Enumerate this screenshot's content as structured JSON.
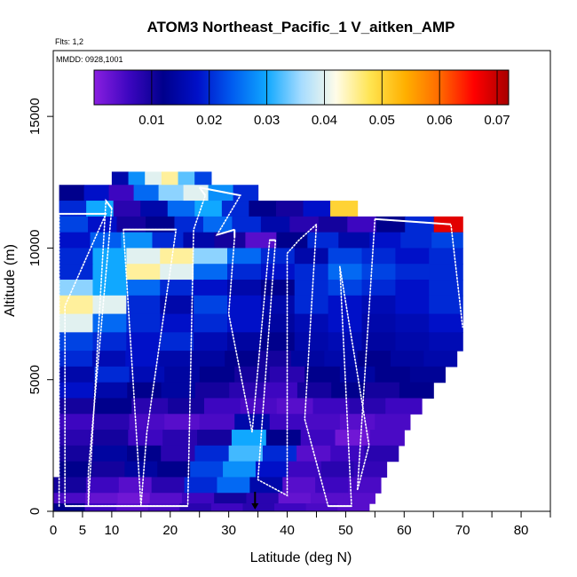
{
  "chart_data": {
    "type": "heatmap",
    "title": "ATOM3 Northeast_Pacific_1 V_aitken_AMP",
    "annotations": {
      "flights": "Flts: 1,2",
      "dates": "MMDD: 0928,1001"
    },
    "xlabel": "Latitude (deg N)",
    "ylabel": "Altitude (m)",
    "xlim": [
      0,
      85
    ],
    "ylim": [
      0,
      17500
    ],
    "x_ticks": [
      0,
      5,
      10,
      20,
      30,
      40,
      50,
      60,
      70,
      80
    ],
    "x_minor_ticks": [
      15,
      25,
      35,
      45,
      55,
      65,
      75,
      85
    ],
    "y_ticks": [
      0,
      5000,
      10000,
      15000
    ],
    "colorbar": {
      "min": 0.0,
      "max": 0.072,
      "ticks": [
        0.01,
        0.02,
        0.03,
        0.04,
        0.05,
        0.06,
        0.07
      ],
      "colors": [
        "#8a1fe0",
        "#3d06c0",
        "#00008c",
        "#0010c8",
        "#005cf0",
        "#10a8ff",
        "#a6dcff",
        "#fffce8",
        "#ffe450",
        "#ffb000",
        "#ff6a00",
        "#ff0000",
        "#a80000"
      ]
    },
    "grid": false,
    "data_extent": {
      "lat_min": 0,
      "lat_max": 71,
      "alt_min": 0,
      "alt_max": 12800
    },
    "rows": [
      {
        "alt": [
          12400,
          12900
        ],
        "lat": [
          10,
          27
        ],
        "values": [
          0.015,
          0.028,
          0.04,
          0.045,
          0.033,
          0.022
        ]
      },
      {
        "alt": [
          11800,
          12400
        ],
        "lat": [
          1,
          35
        ],
        "values": [
          0.012,
          0.018,
          0.006,
          0.025,
          0.035,
          0.04,
          0.028,
          0.02
        ]
      },
      {
        "alt": [
          11200,
          11800
        ],
        "lat": [
          1,
          52
        ],
        "values": [
          0.02,
          0.03,
          0.008,
          0.015,
          0.025,
          0.03,
          0.02,
          0.012,
          0.01,
          0.018,
          0.05
        ]
      },
      {
        "alt": [
          10600,
          11200
        ],
        "lat": [
          1,
          70
        ],
        "values": [
          0.022,
          0.018,
          0.01,
          0.012,
          0.02,
          0.025,
          0.02,
          0.015,
          0.008,
          0.01,
          0.006,
          0.012,
          0.02,
          0.068
        ]
      },
      {
        "alt": [
          10000,
          10600
        ],
        "lat": [
          1,
          70
        ],
        "values": [
          0.018,
          0.024,
          0.028,
          0.02,
          0.015,
          0.01,
          0.004,
          0.012,
          0.02,
          0.015,
          0.018,
          0.02,
          0.022
        ]
      },
      {
        "alt": [
          9400,
          10000
        ],
        "lat": [
          1,
          70
        ],
        "values": [
          0.02,
          0.03,
          0.04,
          0.045,
          0.035,
          0.025,
          0.02,
          0.015,
          0.022,
          0.02,
          0.018,
          0.02
        ]
      },
      {
        "alt": [
          8800,
          9400
        ],
        "lat": [
          1,
          70
        ],
        "values": [
          0.02,
          0.03,
          0.045,
          0.04,
          0.025,
          0.02,
          0.018,
          0.02,
          0.025,
          0.022,
          0.02,
          0.02
        ]
      },
      {
        "alt": [
          8200,
          8800
        ],
        "lat": [
          1,
          70
        ],
        "values": [
          0.035,
          0.03,
          0.025,
          0.02,
          0.018,
          0.015,
          0.012,
          0.02,
          0.022,
          0.02,
          0.018,
          0.02
        ]
      },
      {
        "alt": [
          7500,
          8200
        ],
        "lat": [
          1,
          70
        ],
        "values": [
          0.045,
          0.04,
          0.02,
          0.015,
          0.022,
          0.018,
          0.015,
          0.02,
          0.018,
          0.016,
          0.018,
          0.02
        ]
      },
      {
        "alt": [
          6800,
          7500
        ],
        "lat": [
          1,
          70
        ],
        "values": [
          0.04,
          0.025,
          0.02,
          0.018,
          0.02,
          0.018,
          0.014,
          0.016,
          0.018,
          0.015,
          0.016,
          0.018
        ]
      },
      {
        "alt": [
          6100,
          6800
        ],
        "lat": [
          1,
          70
        ],
        "values": [
          0.022,
          0.02,
          0.018,
          0.02,
          0.016,
          0.014,
          0.012,
          0.015,
          0.016,
          0.014,
          0.015,
          0.016
        ]
      },
      {
        "alt": [
          5500,
          6100
        ],
        "lat": [
          1,
          69
        ],
        "values": [
          0.02,
          0.016,
          0.018,
          0.015,
          0.014,
          0.012,
          0.01,
          0.014,
          0.015,
          0.012,
          0.014,
          0.015
        ]
      },
      {
        "alt": [
          4900,
          5500
        ],
        "lat": [
          1,
          67
        ],
        "values": [
          0.015,
          0.02,
          0.016,
          0.014,
          0.012,
          0.01,
          0.008,
          0.012,
          0.014,
          0.012,
          0.013
        ]
      },
      {
        "alt": [
          4300,
          4900
        ],
        "lat": [
          1,
          65
        ],
        "values": [
          0.018,
          0.015,
          0.012,
          0.014,
          0.01,
          0.008,
          0.006,
          0.01,
          0.012,
          0.01,
          0.012
        ]
      },
      {
        "alt": [
          3700,
          4300
        ],
        "lat": [
          1,
          63
        ],
        "values": [
          0.01,
          0.012,
          0.008,
          0.01,
          0.006,
          0.005,
          0.004,
          0.006,
          0.008,
          0.006
        ]
      },
      {
        "alt": [
          3100,
          3700
        ],
        "lat": [
          1,
          61
        ],
        "values": [
          0.006,
          0.008,
          0.005,
          0.004,
          0.005,
          0.015,
          0.006,
          0.005,
          0.004,
          0.005
        ]
      },
      {
        "alt": [
          2500,
          3100
        ],
        "lat": [
          1,
          60
        ],
        "values": [
          0.008,
          0.01,
          0.006,
          0.008,
          0.01,
          0.03,
          0.012,
          0.006,
          0.002,
          0.005
        ]
      },
      {
        "alt": [
          1900,
          2500
        ],
        "lat": [
          1,
          59
        ],
        "values": [
          0.01,
          0.014,
          0.012,
          0.008,
          0.02,
          0.032,
          0.02,
          0.004,
          0.006,
          0.008
        ]
      },
      {
        "alt": [
          1300,
          1900
        ],
        "lat": [
          1,
          57
        ],
        "values": [
          0.012,
          0.01,
          0.014,
          0.012,
          0.022,
          0.028,
          0.018,
          0.006,
          0.008,
          0.007
        ]
      },
      {
        "alt": [
          700,
          1300
        ],
        "lat": [
          0,
          56
        ],
        "values": [
          0.01,
          0.006,
          0.004,
          0.008,
          0.02,
          0.025,
          0.015,
          0.004,
          0.006,
          0.005
        ]
      },
      {
        "alt": [
          300,
          700
        ],
        "lat": [
          0,
          55
        ],
        "values": [
          0.005,
          0.003,
          0.002,
          0.004,
          0.006,
          0.01,
          0.008,
          0.003,
          0.004,
          0.004
        ]
      },
      {
        "alt": [
          0,
          300
        ],
        "lat": [
          0,
          54
        ],
        "values": [
          0.012,
          0.006,
          0.004,
          0.005,
          0.008,
          0.006,
          0.008,
          0.006,
          0.005,
          0.004
        ]
      }
    ],
    "flight_track": [
      [
        1,
        200
      ],
      [
        1,
        11300
      ],
      [
        9,
        11300
      ],
      [
        2,
        7800
      ],
      [
        2,
        200
      ],
      [
        6,
        200
      ],
      [
        9,
        11800
      ],
      [
        10,
        11500
      ],
      [
        6,
        1500
      ],
      [
        6,
        200
      ],
      [
        15,
        200
      ],
      [
        12,
        10700
      ],
      [
        21,
        10700
      ],
      [
        16,
        3000
      ],
      [
        15,
        200
      ],
      [
        23,
        200
      ],
      [
        24,
        10700
      ],
      [
        26,
        12000
      ],
      [
        25,
        12300
      ],
      [
        32,
        12000
      ],
      [
        28,
        10500
      ],
      [
        31,
        10700
      ],
      [
        31,
        10400
      ],
      [
        30,
        7500
      ],
      [
        34,
        3000
      ],
      [
        37,
        10300
      ],
      [
        38,
        10300
      ],
      [
        35,
        1200
      ],
      [
        40,
        600
      ],
      [
        40,
        9800
      ],
      [
        42,
        10300
      ],
      [
        45,
        10900
      ],
      [
        43,
        3500
      ],
      [
        47,
        200
      ],
      [
        51,
        200
      ],
      [
        49,
        9300
      ],
      [
        54,
        2500
      ],
      [
        52,
        800
      ],
      [
        55,
        11100
      ],
      [
        68,
        10900
      ],
      [
        70,
        7000
      ]
    ],
    "marker": {
      "lat": 34.5,
      "label": "arrow"
    }
  }
}
